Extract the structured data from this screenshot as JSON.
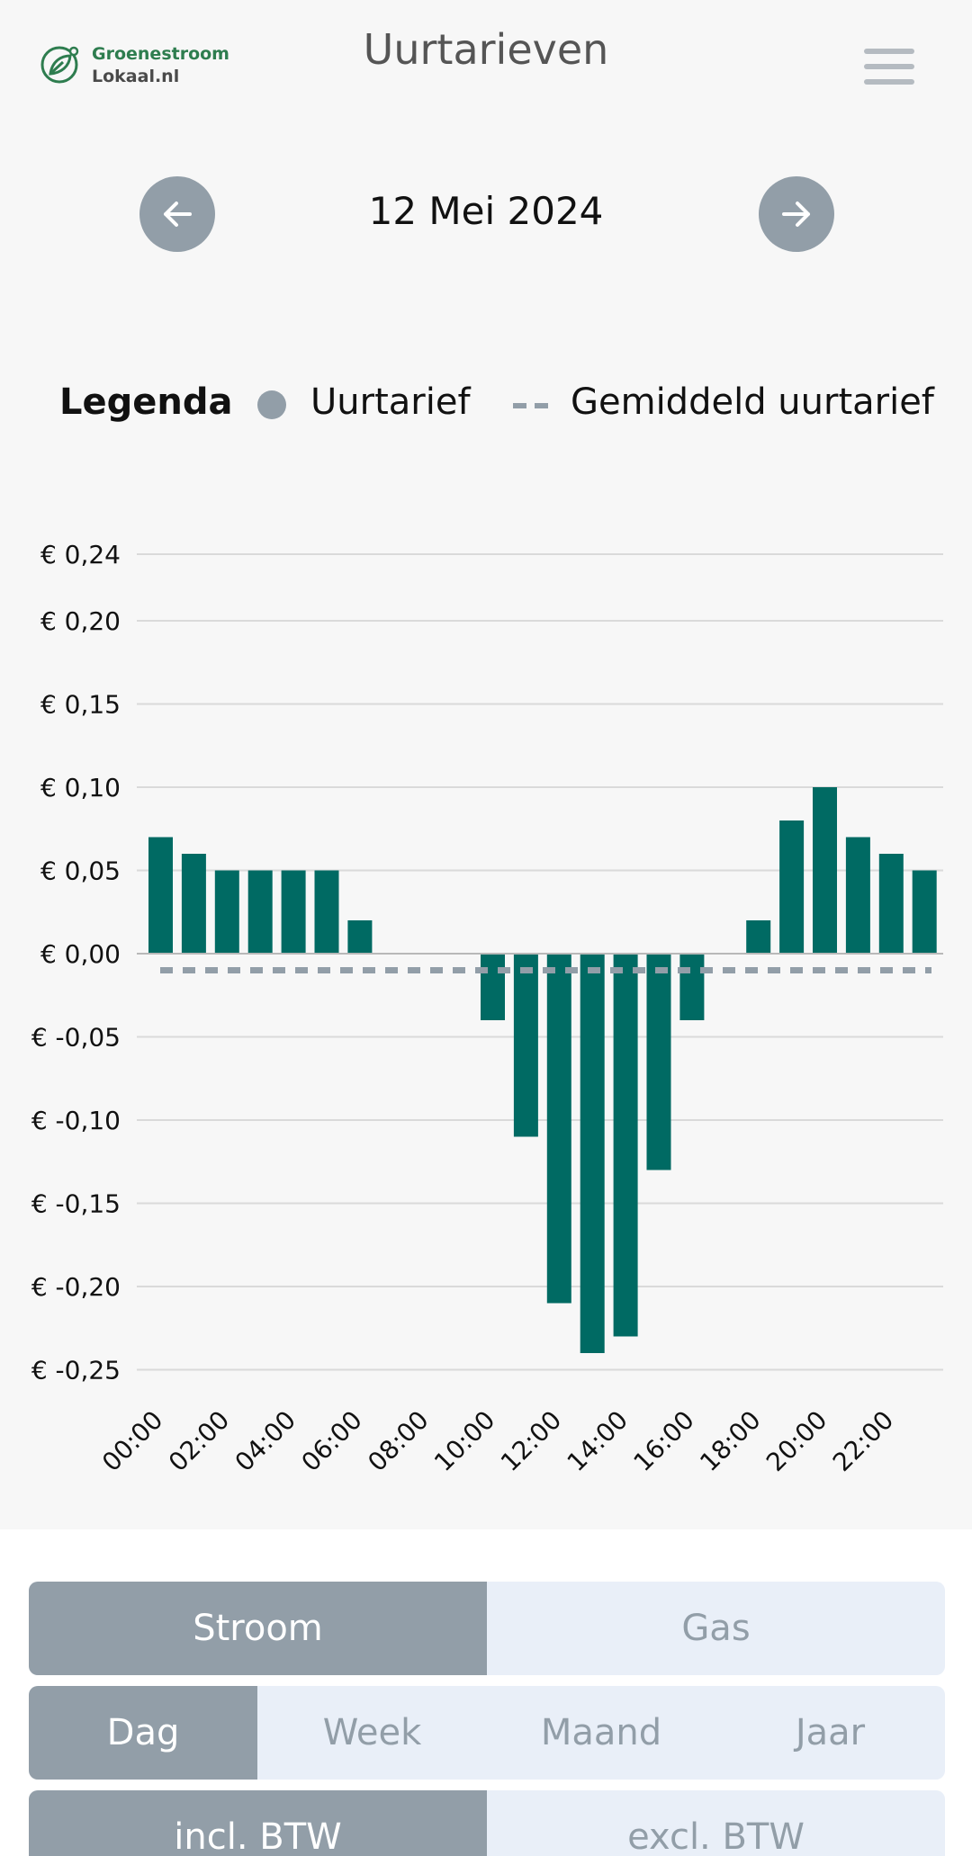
{
  "header": {
    "logo_line1": "Groenestroom",
    "logo_line2": "Lokaal.nl",
    "title": "Uurtarieven",
    "menu_icon": "hamburger-icon"
  },
  "date_nav": {
    "prev_icon": "arrow-left-icon",
    "date": "12 Mei 2024",
    "next_icon": "arrow-right-icon"
  },
  "legend": {
    "title": "Legenda",
    "item1": "Uurtarief",
    "item2": "Gemiddeld uurtarief"
  },
  "colors": {
    "bar": "#006a63",
    "average_line": "#929ea8",
    "brand_green": "#2e7d4f",
    "active_segment": "#929ea8",
    "inactive_segment": "#e9eff8"
  },
  "chart_data": {
    "type": "bar",
    "categories": [
      "00:00",
      "01:00",
      "02:00",
      "03:00",
      "04:00",
      "05:00",
      "06:00",
      "07:00",
      "08:00",
      "09:00",
      "10:00",
      "11:00",
      "12:00",
      "13:00",
      "14:00",
      "15:00",
      "16:00",
      "17:00",
      "18:00",
      "19:00",
      "20:00",
      "21:00",
      "22:00",
      "23:00"
    ],
    "x_tick_labels": [
      "00:00",
      "02:00",
      "04:00",
      "06:00",
      "08:00",
      "10:00",
      "12:00",
      "14:00",
      "16:00",
      "18:00",
      "20:00",
      "22:00"
    ],
    "series": [
      {
        "name": "Uurtarief",
        "values": [
          0.07,
          0.06,
          0.05,
          0.05,
          0.05,
          0.05,
          0.02,
          0,
          0,
          0,
          -0.04,
          -0.11,
          -0.21,
          -0.24,
          -0.23,
          -0.13,
          -0.04,
          0,
          0.02,
          0.08,
          0.1,
          0.07,
          0.06,
          0.05
        ]
      }
    ],
    "average": -0.01,
    "y_ticks": [
      0.24,
      0.2,
      0.15,
      0.1,
      0.05,
      0.0,
      -0.05,
      -0.1,
      -0.15,
      -0.2,
      -0.25
    ],
    "y_tick_labels": [
      "€ 0,24",
      "€ 0,20",
      "€ 0,15",
      "€ 0,10",
      "€ 0,05",
      "€ 0,00",
      "€ -0,05",
      "€ -0,10",
      "€ -0,15",
      "€ -0,20",
      "€ -0,25"
    ],
    "ylim": [
      -0.25,
      0.24
    ],
    "grid": true,
    "title": "",
    "xlabel": "",
    "ylabel": ""
  },
  "toggles": {
    "energy": {
      "options": [
        "Stroom",
        "Gas"
      ],
      "active": "Stroom"
    },
    "period": {
      "options": [
        "Dag",
        "Week",
        "Maand",
        "Jaar"
      ],
      "active": "Dag"
    },
    "tax": {
      "options": [
        "incl. BTW",
        "excl. BTW"
      ],
      "active": "incl. BTW"
    }
  }
}
